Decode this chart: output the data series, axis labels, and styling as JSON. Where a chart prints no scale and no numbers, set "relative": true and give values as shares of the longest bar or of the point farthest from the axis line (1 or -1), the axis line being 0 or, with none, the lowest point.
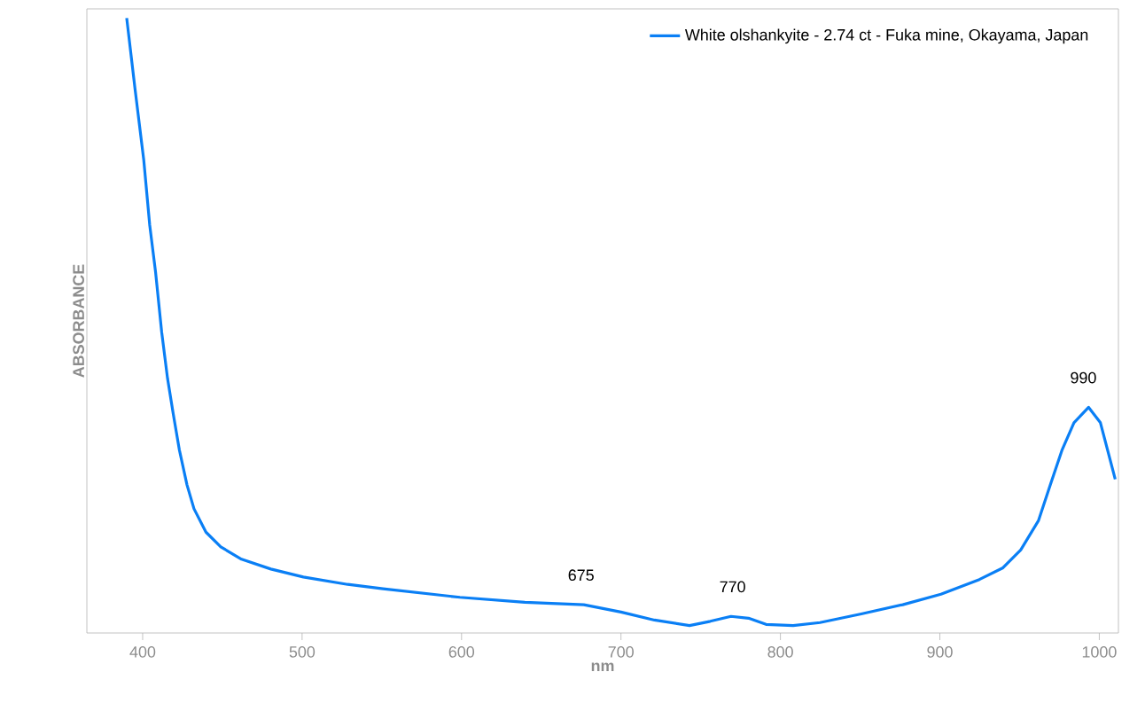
{
  "chart_data": {
    "type": "line",
    "relative": true,
    "xlabel": "nm",
    "ylabel": "ABSORBANCE",
    "xlim": [
      365,
      1012
    ],
    "xticks": [
      400,
      500,
      600,
      700,
      800,
      900,
      1000
    ],
    "legend": "top right",
    "grid": false,
    "series": [
      {
        "name": "White olshankyite - 2.74 ct - Fuka mine, Okayama, Japan",
        "color": "#0a7ff5",
        "x": [
          390,
          395.2,
          400.7,
          404.4,
          408.1,
          411.9,
          415.6,
          419.2,
          423,
          427.8,
          432.2,
          439.7,
          449,
          462,
          480.4,
          500.8,
          528.6,
          550.8,
          599,
          639.7,
          676.7,
          700,
          721,
          743,
          756,
          769,
          780,
          791,
          808,
          824.8,
          850.7,
          876.7,
          900.7,
          924.8,
          939.6,
          950.7,
          961.9,
          969.3,
          976.7,
          984.1,
          993.3,
          1000.7,
          1010
        ],
        "values": [
          1.0,
          0.885,
          0.769,
          0.664,
          0.587,
          0.49,
          0.414,
          0.356,
          0.298,
          0.241,
          0.202,
          0.164,
          0.14,
          0.12,
          0.104,
          0.091,
          0.079,
          0.072,
          0.058,
          0.05,
          0.046,
          0.034,
          0.021,
          0.012,
          0.019,
          0.027,
          0.024,
          0.014,
          0.012,
          0.017,
          0.031,
          0.046,
          0.063,
          0.087,
          0.106,
          0.135,
          0.183,
          0.241,
          0.298,
          0.342,
          0.367,
          0.342,
          0.25
        ]
      }
    ],
    "annotations": [
      {
        "text": "675",
        "x": 675,
        "y": 0.046
      },
      {
        "text": "770",
        "x": 770,
        "y": 0.027
      },
      {
        "text": "990",
        "x": 990,
        "y": 0.367
      }
    ]
  }
}
